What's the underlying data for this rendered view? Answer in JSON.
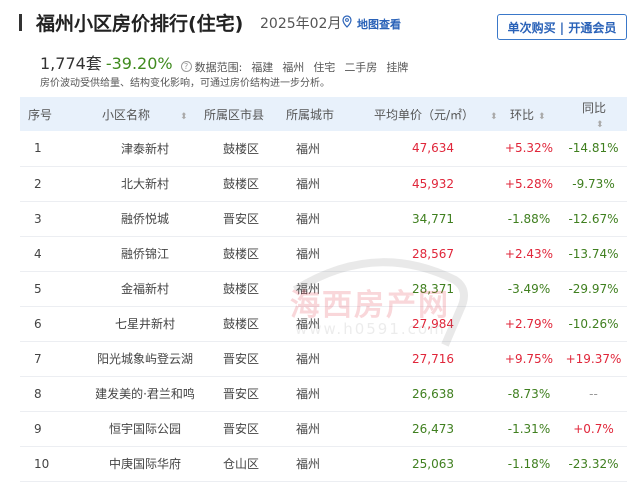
{
  "header": {
    "title": "福州小区房价排行(住宅)",
    "date": "2025年02月",
    "map_label": "地图查看",
    "buy_button": "单次购买 | 开通会员"
  },
  "summary": {
    "count": "1,774套",
    "change": "-39.20%",
    "scope_label": "数据范围:",
    "scope_tags": [
      "福建",
      "福州",
      "住宅",
      "二手房",
      "挂牌"
    ],
    "note": "房价波动受供给量、结构变化影响，可通过房价结构进一步分析。"
  },
  "watermark": {
    "name": "海西房产网",
    "url": "www.h0591.com"
  },
  "colors": {
    "up": "#e0263a",
    "down": "#3f7f1f",
    "header_bg": "#e8f1fb",
    "accent": "#2a62b8"
  },
  "table": {
    "columns": [
      "序号",
      "小区名称",
      "所属区市县",
      "所属城市",
      "平均单价（元/㎡）",
      "环比",
      "同比"
    ],
    "rows": [
      {
        "rank": "1",
        "name": "津泰新村",
        "district": "鼓楼区",
        "city": "福州",
        "price": "47,634",
        "mom": "+5.32%",
        "yoy": "-14.81%"
      },
      {
        "rank": "2",
        "name": "北大新村",
        "district": "鼓楼区",
        "city": "福州",
        "price": "45,932",
        "mom": "+5.28%",
        "yoy": "-9.73%"
      },
      {
        "rank": "3",
        "name": "融侨悦城",
        "district": "晋安区",
        "city": "福州",
        "price": "34,771",
        "mom": "-1.88%",
        "yoy": "-12.67%"
      },
      {
        "rank": "4",
        "name": "融侨锦江",
        "district": "鼓楼区",
        "city": "福州",
        "price": "28,567",
        "mom": "+2.43%",
        "yoy": "-13.74%"
      },
      {
        "rank": "5",
        "name": "金福新村",
        "district": "鼓楼区",
        "city": "福州",
        "price": "28,371",
        "mom": "-3.49%",
        "yoy": "-29.97%"
      },
      {
        "rank": "6",
        "name": "七星井新村",
        "district": "鼓楼区",
        "city": "福州",
        "price": "27,984",
        "mom": "+2.79%",
        "yoy": "-10.26%"
      },
      {
        "rank": "7",
        "name": "阳光城象屿登云湖",
        "district": "晋安区",
        "city": "福州",
        "price": "27,716",
        "mom": "+9.75%",
        "yoy": "+19.37%"
      },
      {
        "rank": "8",
        "name": "建发美的·君兰和鸣",
        "district": "晋安区",
        "city": "福州",
        "price": "26,638",
        "mom": "-8.73%",
        "yoy": "--"
      },
      {
        "rank": "9",
        "name": "恒宇国际公园",
        "district": "晋安区",
        "city": "福州",
        "price": "26,473",
        "mom": "-1.31%",
        "yoy": "+0.7%"
      },
      {
        "rank": "10",
        "name": "中庚国际华府",
        "district": "仓山区",
        "city": "福州",
        "price": "25,063",
        "mom": "-1.18%",
        "yoy": "-23.32%"
      }
    ]
  }
}
